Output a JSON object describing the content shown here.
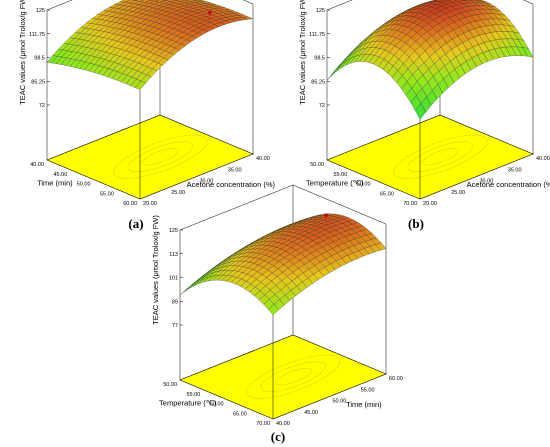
{
  "chart_data": [
    {
      "type": "surface",
      "panel_label": "(a)",
      "zlabel": "TEAC values (μmol Trolox/g FW)",
      "zticks": [
        "72",
        "85.25",
        "98.5",
        "111.75",
        "125"
      ],
      "x_axis": {
        "label": "Time (min)",
        "ticks": [
          "40.00",
          "45.00",
          "50.00",
          "55.00",
          "60.00"
        ],
        "range": [
          40,
          60
        ]
      },
      "y_axis": {
        "label": "Acetone concentration (%)",
        "ticks": [
          "20.00",
          "25.00",
          "30.00",
          "35.00",
          "40.00"
        ],
        "range": [
          20,
          40
        ]
      },
      "z_range": [
        72,
        125
      ],
      "surface": {
        "base": 120,
        "peak_x": 58,
        "peak_y": 34,
        "ax": 0.02,
        "ay": 0.09
      }
    },
    {
      "type": "surface",
      "panel_label": "(b)",
      "zlabel": "TEAC values (μmol Trolox/g FW)",
      "zticks": [
        "72",
        "85.25",
        "98.5",
        "111.75",
        "125"
      ],
      "x_axis": {
        "label": "Temperature (℃)",
        "ticks": [
          "50.00",
          "55.00",
          "60.00",
          "65.00",
          "70.00"
        ],
        "range": [
          50,
          70
        ]
      },
      "y_axis": {
        "label": "Acetone concentration (%)",
        "ticks": [
          "20.00",
          "25.00",
          "30.00",
          "35.00",
          "40.00"
        ],
        "range": [
          20,
          40
        ]
      },
      "z_range": [
        72,
        125
      ],
      "surface": {
        "base": 123,
        "peak_x": 60,
        "peak_y": 32,
        "ax": 0.2,
        "ay": 0.12
      }
    },
    {
      "type": "surface",
      "panel_label": "(c)",
      "zlabel": "TEAC values (μmol Trolox/g FW)",
      "zticks": [
        "77",
        "89",
        "101",
        "113",
        "125"
      ],
      "x_axis": {
        "label": "Temperature (℃)",
        "ticks": [
          "50.00",
          "55.00",
          "60.00",
          "65.00",
          "70.00"
        ],
        "range": [
          50,
          70
        ]
      },
      "y_axis": {
        "label": "Time (min)",
        "ticks": [
          "40.00",
          "45.00",
          "50.00",
          "55.00",
          "60.00"
        ],
        "range": [
          40,
          60
        ]
      },
      "z_range": [
        77,
        125
      ],
      "surface": {
        "base": 121,
        "peak_x": 62,
        "peak_y": 56,
        "ax": 0.12,
        "ay": 0.045
      }
    }
  ]
}
